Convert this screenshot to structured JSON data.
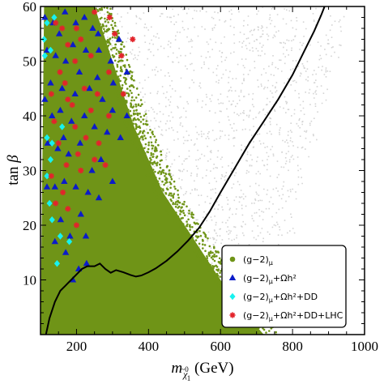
{
  "chart_data": {
    "type": "scatter",
    "title": "",
    "xlabel": {
      "base": "m",
      "sub_main": "χ",
      "sub_accent": "~0",
      "sub_index": "1",
      "unit": " (GeV)"
    },
    "ylabel": {
      "text": "tan ",
      "symbol": "β"
    },
    "xlim": [
      100,
      1000
    ],
    "ylim": [
      0,
      60
    ],
    "xticks": [
      200,
      400,
      600,
      800,
      1000
    ],
    "xtick_labels": [
      "200",
      "400",
      "600",
      "800",
      "1000"
    ],
    "yticks": [
      10,
      20,
      30,
      40,
      50,
      60
    ],
    "ytick_labels": [
      "10",
      "20",
      "30",
      "40",
      "50",
      "60"
    ],
    "grid": false,
    "legend_position": "bottom-right",
    "colors": {
      "background_scan": "#d4d4d4",
      "g2": "#6f9417",
      "relic": "#0b1cc9",
      "dd": "#17f2ef",
      "lhc": "#e3242b",
      "curve": "#000000"
    },
    "series": [
      {
        "name_main": "(g−2)",
        "name_sub": "μ",
        "name_tail": "",
        "marker": "circle",
        "color": "#6f9417",
        "region_description": "dense filled region",
        "upper_boundary": [
          [
            110,
            60
          ],
          [
            250,
            60
          ],
          [
            270,
            56
          ],
          [
            300,
            50
          ],
          [
            330,
            44
          ],
          [
            360,
            38
          ],
          [
            400,
            32
          ],
          [
            440,
            26
          ],
          [
            480,
            22
          ],
          [
            520,
            18
          ],
          [
            560,
            14
          ],
          [
            600,
            10
          ],
          [
            640,
            6
          ],
          [
            680,
            3
          ],
          [
            720,
            0
          ]
        ]
      },
      {
        "name_main": "(g−2)",
        "name_sub": "μ",
        "name_tail": "+Ωh²",
        "marker": "triangle",
        "color": "#0b1cc9",
        "points": [
          [
            112,
            58
          ],
          [
            135,
            57
          ],
          [
            152,
            55
          ],
          [
            168,
            59
          ],
          [
            198,
            57
          ],
          [
            222,
            58
          ],
          [
            245,
            56
          ],
          [
            262,
            52
          ],
          [
            295,
            50
          ],
          [
            318,
            54
          ],
          [
            340,
            48
          ],
          [
            258,
            47
          ],
          [
            226,
            52
          ],
          [
            190,
            53
          ],
          [
            170,
            50
          ],
          [
            142,
            51
          ],
          [
            118,
            52
          ],
          [
            128,
            46
          ],
          [
            160,
            45
          ],
          [
            208,
            48
          ],
          [
            236,
            45
          ],
          [
            272,
            43
          ],
          [
            300,
            41
          ],
          [
            322,
            36
          ],
          [
            285,
            37
          ],
          [
            250,
            38
          ],
          [
            222,
            40
          ],
          [
            186,
            39
          ],
          [
            155,
            41
          ],
          [
            132,
            40
          ],
          [
            120,
            35
          ],
          [
            148,
            34
          ],
          [
            178,
            33
          ],
          [
            210,
            35
          ],
          [
            243,
            30
          ],
          [
            268,
            32
          ],
          [
            300,
            28
          ],
          [
            232,
            26
          ],
          [
            198,
            27
          ],
          [
            166,
            28
          ],
          [
            140,
            27
          ],
          [
            118,
            27
          ],
          [
            156,
            21
          ],
          [
            182,
            18
          ],
          [
            212,
            22
          ],
          [
            140,
            17
          ],
          [
            206,
            12
          ],
          [
            170,
            15
          ],
          [
            302,
            46
          ],
          [
            340,
            40
          ],
          [
            260,
            55
          ],
          [
            196,
            44
          ],
          [
            164,
            36
          ],
          [
            112,
            43
          ],
          [
            262,
            25
          ],
          [
            226,
            18
          ],
          [
            190,
            10
          ],
          [
            228,
            13
          ]
        ]
      },
      {
        "name_main": "(g−2)",
        "name_sub": "μ",
        "name_tail": "+Ωh²+DD",
        "marker": "diamond",
        "color": "#17f2ef",
        "points": [
          [
            118,
            57
          ],
          [
            128,
            52
          ],
          [
            112,
            51
          ],
          [
            138,
            58
          ],
          [
            118,
            36
          ],
          [
            132,
            35
          ],
          [
            128,
            32
          ],
          [
            118,
            29
          ],
          [
            132,
            21
          ],
          [
            125,
            24
          ],
          [
            155,
            18
          ],
          [
            180,
            17
          ],
          [
            146,
            13
          ],
          [
            110,
            54
          ],
          [
            160,
            38
          ]
        ]
      },
      {
        "name_main": "(g−2)",
        "name_sub": "μ",
        "name_tail": "+Ωh²+DD+LHC",
        "marker": "star",
        "color": "#e3242b",
        "points": [
          [
            142,
            57
          ],
          [
            160,
            56
          ],
          [
            176,
            53
          ],
          [
            212,
            54
          ],
          [
            250,
            59
          ],
          [
            306,
            55
          ],
          [
            325,
            51
          ],
          [
            356,
            54
          ],
          [
            290,
            48
          ],
          [
            240,
            51
          ],
          [
            196,
            50
          ],
          [
            154,
            48
          ],
          [
            130,
            44
          ],
          [
            176,
            43
          ],
          [
            222,
            45
          ],
          [
            258,
            44
          ],
          [
            290,
            40
          ],
          [
            330,
            44
          ],
          [
            196,
            38
          ],
          [
            150,
            35
          ],
          [
            172,
            31
          ],
          [
            212,
            30
          ],
          [
            250,
            32
          ],
          [
            280,
            31
          ],
          [
            226,
            36
          ],
          [
            130,
            29
          ],
          [
            142,
            24
          ],
          [
            176,
            23
          ],
          [
            200,
            20
          ],
          [
            162,
            26
          ],
          [
            262,
            35
          ],
          [
            188,
            42
          ],
          [
            240,
            41
          ],
          [
            204,
            33
          ],
          [
            138,
            39
          ],
          [
            292,
            58
          ],
          [
            200,
            56
          ],
          [
            168,
            46
          ]
        ]
      }
    ],
    "boundary_curve": {
      "style": "solid black line",
      "points": [
        [
          115,
          0
        ],
        [
          125,
          3
        ],
        [
          140,
          6
        ],
        [
          155,
          8
        ],
        [
          170,
          9
        ],
        [
          185,
          10
        ],
        [
          200,
          11
        ],
        [
          215,
          12
        ],
        [
          230,
          12.5
        ],
        [
          250,
          12.5
        ],
        [
          265,
          13
        ],
        [
          280,
          12
        ],
        [
          295,
          11.3
        ],
        [
          310,
          11.8
        ],
        [
          330,
          11.4
        ],
        [
          350,
          10.9
        ],
        [
          365,
          10.6
        ],
        [
          380,
          10.8
        ],
        [
          400,
          11.4
        ],
        [
          420,
          12.1
        ],
        [
          450,
          13.5
        ],
        [
          480,
          15.2
        ],
        [
          510,
          17.2
        ],
        [
          540,
          19.5
        ],
        [
          570,
          22.5
        ],
        [
          600,
          26
        ],
        [
          640,
          30.5
        ],
        [
          680,
          35
        ],
        [
          720,
          39
        ],
        [
          760,
          43
        ],
        [
          800,
          47.5
        ],
        [
          830,
          51.5
        ],
        [
          860,
          55.5
        ],
        [
          880,
          58.5
        ],
        [
          895,
          61
        ]
      ]
    }
  }
}
